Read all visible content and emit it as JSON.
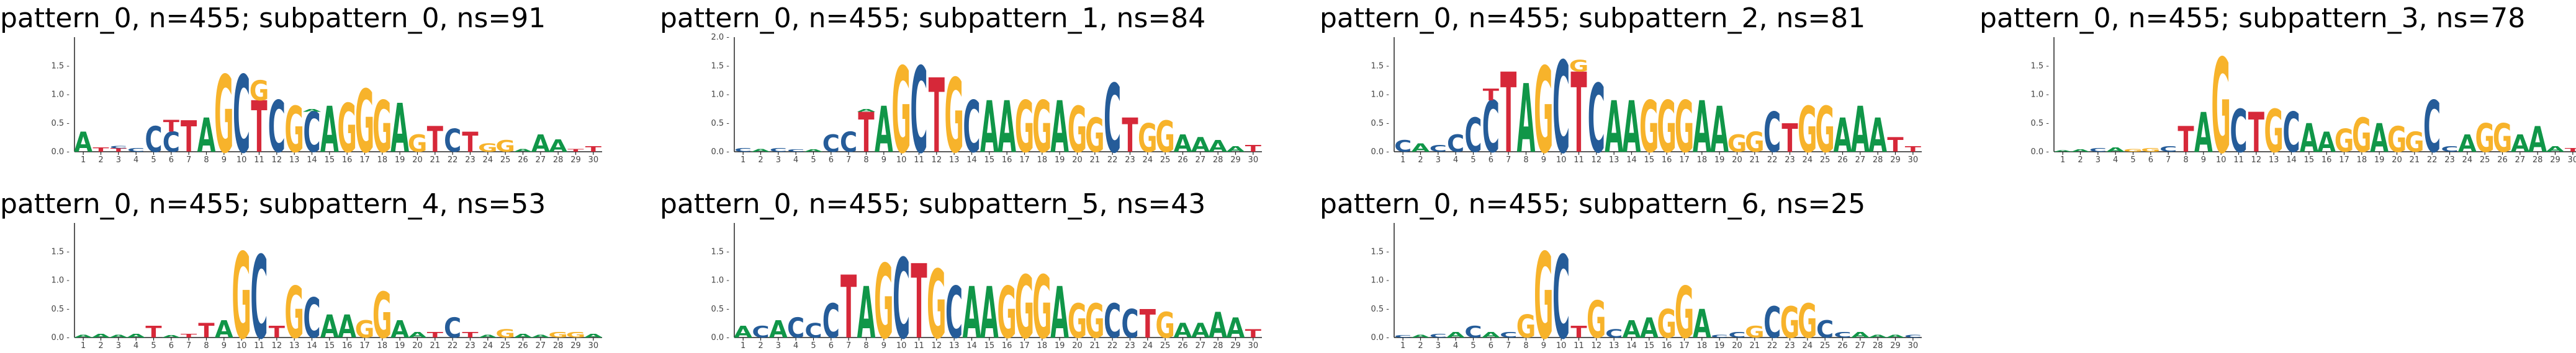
{
  "colors": {
    "A": "#109648",
    "C": "#255C99",
    "G": "#F7B32B",
    "T": "#D62839"
  },
  "chart_data": [
    {
      "type": "sequence-logo",
      "title": "pattern_0, n=455; subpattern_0, ns=91",
      "x_ticks": [
        "1",
        "2",
        "3",
        "4",
        "5",
        "6",
        "7",
        "8",
        "9",
        "10",
        "11",
        "12",
        "13",
        "14",
        "15",
        "16",
        "17",
        "18",
        "19",
        "20",
        "21",
        "22",
        "23",
        "24",
        "25",
        "26",
        "27",
        "28",
        "29",
        "30"
      ],
      "y_ticks": [
        "0.0 -",
        "0.5 -",
        "1.0 -",
        "1.5 -"
      ],
      "ylim": [
        0,
        2
      ],
      "logo": [
        "A0.35",
        "T0.08",
        "T0.06 C0.04",
        "C0.06",
        "C0.45",
        "C0.35 T0.2",
        "T0.55",
        "A0.6",
        "G1.35",
        "C1.35",
        "T0.9 G0.35",
        "C0.9",
        "G0.8",
        "C0.7 A0.05",
        "A0.8",
        "G0.85",
        "G1.1",
        "G0.9",
        "A0.85",
        "G0.3",
        "T0.45",
        "C0.4",
        "T0.35",
        "G0.15",
        "G0.2",
        "A0.05",
        "A0.3",
        "A0.22",
        "T0.05",
        "T0.1"
      ]
    },
    {
      "type": "sequence-logo",
      "title": "pattern_0, n=455; subpattern_1, ns=84",
      "x_ticks": [
        "1",
        "2",
        "3",
        "4",
        "5",
        "6",
        "7",
        "8",
        "9",
        "10",
        "11",
        "12",
        "13",
        "14",
        "15",
        "16",
        "17",
        "18",
        "19",
        "20",
        "21",
        "22",
        "23",
        "24",
        "25",
        "26",
        "27",
        "28",
        "29",
        "30"
      ],
      "y_ticks": [
        "0.0 -",
        "0.5 -",
        "1.0 -",
        "1.5 -",
        "2.0 -"
      ],
      "ylim": [
        0,
        2
      ],
      "logo": [
        "C0.06",
        "A0.05",
        "C0.06",
        "C0.04",
        "A0.04",
        "C0.3",
        "C0.35",
        "T0.7 A0.05",
        "A0.8",
        "G1.5",
        "C1.5",
        "T1.3",
        "G1.3",
        "C0.9",
        "A0.9",
        "A0.9",
        "G0.9",
        "G0.9",
        "A0.9",
        "G0.8",
        "G0.6",
        "C1.2",
        "T0.6",
        "G0.5",
        "G0.55",
        "A0.3",
        "A0.25",
        "A0.2",
        "A0.1",
        "T0.12"
      ]
    },
    {
      "type": "sequence-logo",
      "title": "pattern_0, n=455; subpattern_2, ns=81",
      "x_ticks": [
        "1",
        "2",
        "3",
        "4",
        "5",
        "6",
        "7",
        "8",
        "9",
        "10",
        "11",
        "12",
        "13",
        "14",
        "15",
        "16",
        "17",
        "18",
        "19",
        "20",
        "21",
        "22",
        "23",
        "24",
        "25",
        "26",
        "27",
        "28",
        "29",
        "30"
      ],
      "y_ticks": [
        "0.0 -",
        "0.5 -",
        "1.0 -",
        "1.5 -"
      ],
      "ylim": [
        0,
        2
      ],
      "logo": [
        "C0.2",
        "A0.15",
        "C0.12",
        "C0.3",
        "C0.6",
        "C0.9 T0.2",
        "T1.4",
        "A1.2",
        "G1.5",
        "C1.6",
        "T1.4 G0.2",
        "C1.2",
        "A0.9",
        "A0.9",
        "G0.9",
        "G0.9",
        "G0.9",
        "A0.9",
        "A0.8",
        "G0.3",
        "G0.35",
        "C0.7",
        "T0.5",
        "G0.8",
        "G0.8",
        "A0.6",
        "A0.8",
        "A0.6",
        "T0.25",
        "T0.1"
      ]
    },
    {
      "type": "sequence-logo",
      "title": "pattern_0, n=455; subpattern_3, ns=78",
      "x_ticks": [
        "1",
        "2",
        "3",
        "4",
        "5",
        "6",
        "7",
        "8",
        "9",
        "10",
        "11",
        "12",
        "13",
        "14",
        "15",
        "16",
        "17",
        "18",
        "19",
        "20",
        "21",
        "22",
        "23",
        "24",
        "25",
        "26",
        "27",
        "28",
        "29",
        "30"
      ],
      "y_ticks": [
        "0.0 -",
        "0.5 -",
        "1.0 -",
        "1.5 -"
      ],
      "ylim": [
        0,
        2
      ],
      "logo": [
        "A0.03",
        "A0.04",
        "C0.06",
        "A0.08",
        "G0.05",
        "G0.06",
        "C0.1",
        "T0.45",
        "A0.7",
        "G1.65",
        "C0.75",
        "T0.7",
        "G0.75",
        "C0.7",
        "A0.5",
        "A0.35",
        "G0.4",
        "G0.6",
        "A0.5",
        "G0.45",
        "G0.35",
        "C0.9",
        "C0.1",
        "A0.3",
        "G0.5",
        "G0.5",
        "A0.3",
        "A0.45",
        "A0.1",
        "T0.06"
      ]
    },
    {
      "type": "sequence-logo",
      "title": "pattern_0, n=455; subpattern_4, ns=53",
      "x_ticks": [
        "1",
        "2",
        "3",
        "4",
        "5",
        "6",
        "7",
        "8",
        "9",
        "10",
        "11",
        "12",
        "13",
        "14",
        "15",
        "16",
        "17",
        "18",
        "19",
        "20",
        "21",
        "22",
        "23",
        "24",
        "25",
        "26",
        "27",
        "28",
        "29",
        "30"
      ],
      "y_ticks": [
        "0.0 -",
        "0.5 -",
        "1.0 -",
        "1.5 -"
      ],
      "ylim": [
        0,
        2
      ],
      "logo": [
        "A0.05",
        "A0.06",
        "A0.05",
        "A0.06",
        "T0.2",
        "A0.04",
        "T0.06",
        "T0.25",
        "A0.3",
        "G1.5",
        "C1.45",
        "T0.2",
        "G0.9",
        "C0.7",
        "A0.4",
        "A0.4",
        "G0.3",
        "G0.8",
        "A0.3",
        "A0.1",
        "T0.1",
        "C0.35",
        "T0.1",
        "A0.05",
        "G0.15",
        "A0.06",
        "A0.05",
        "G0.1",
        "G0.1",
        "A0.06"
      ]
    },
    {
      "type": "sequence-logo",
      "title": "pattern_0, n=455; subpattern_5, ns=43",
      "x_ticks": [
        "1",
        "2",
        "3",
        "4",
        "5",
        "6",
        "7",
        "8",
        "9",
        "10",
        "11",
        "12",
        "13",
        "14",
        "15",
        "16",
        "17",
        "18",
        "19",
        "20",
        "21",
        "22",
        "23",
        "24",
        "25",
        "26",
        "27",
        "28",
        "29",
        "30"
      ],
      "y_ticks": [
        "0.0 -",
        "0.5 -",
        "1.0 -",
        "1.5 -"
      ],
      "ylim": [
        0,
        2
      ],
      "logo": [
        "A0.2",
        "C0.2",
        "A0.3",
        "C0.35",
        "C0.25",
        "C0.6",
        "T1.1",
        "A0.9",
        "G1.3",
        "C1.4",
        "T1.3",
        "G1.2",
        "C0.9",
        "A0.9",
        "A0.9",
        "G0.9",
        "G1.1",
        "G1.1",
        "A0.9",
        "G0.6",
        "G0.6",
        "C0.6",
        "C0.5",
        "T0.5",
        "G0.45",
        "A0.25",
        "A0.25",
        "A0.45",
        "A0.35",
        "T0.15"
      ]
    },
    {
      "type": "sequence-logo",
      "title": "pattern_0, n=455; subpattern_6, ns=25",
      "x_ticks": [
        "1",
        "2",
        "3",
        "4",
        "5",
        "6",
        "7",
        "8",
        "9",
        "10",
        "11",
        "12",
        "13",
        "14",
        "15",
        "16",
        "17",
        "18",
        "19",
        "20",
        "21",
        "22",
        "23",
        "24",
        "25",
        "26",
        "27",
        "28",
        "29",
        "30"
      ],
      "y_ticks": [
        "0.0 -",
        "0.5 -",
        "1.0 -",
        "1.5 -"
      ],
      "ylim": [
        0,
        2
      ],
      "logo": [
        "C0.04",
        "A0.05",
        "C0.06",
        "A0.1",
        "C0.2",
        "A0.1",
        "C0.1",
        "G0.4",
        "G1.5",
        "C1.45",
        "T0.2",
        "G0.65",
        "C0.15",
        "A0.3",
        "A0.35",
        "G0.5",
        "G0.9",
        "A0.5",
        "C0.05",
        "C0.1",
        "G0.2",
        "C0.55",
        "G0.55",
        "G0.6",
        "C0.3",
        "C0.1",
        "A0.1",
        "A0.05",
        "A0.05",
        "C0.05"
      ]
    }
  ]
}
